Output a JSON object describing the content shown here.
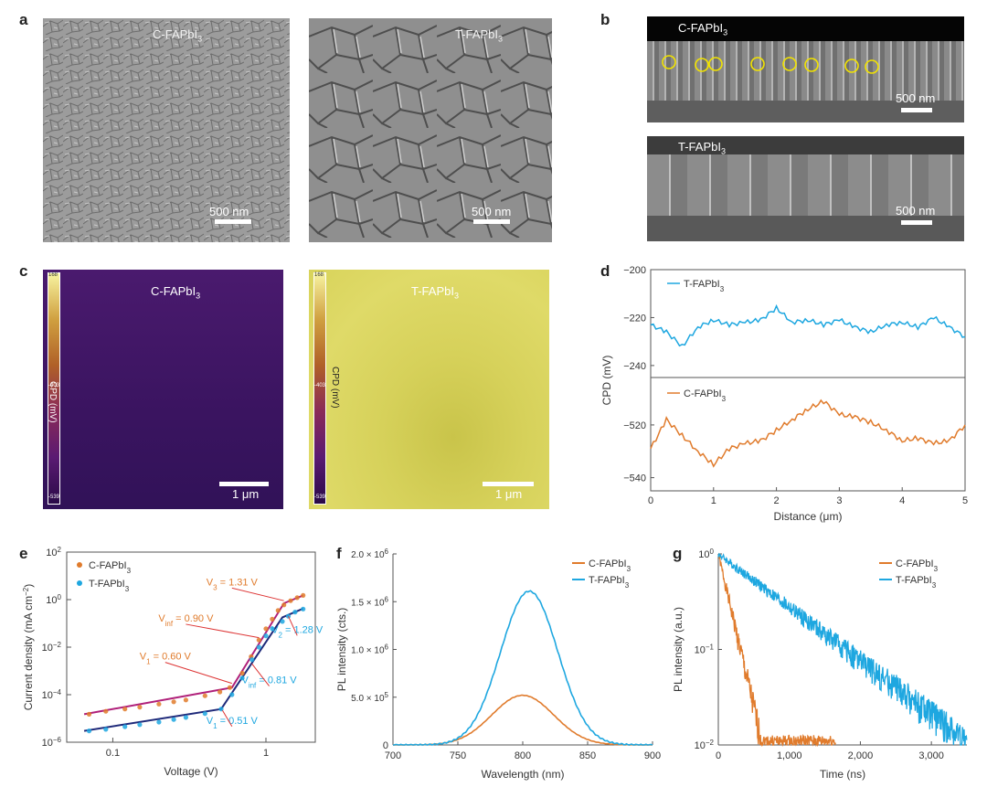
{
  "panels": {
    "a": {
      "letter": "a",
      "left": {
        "label_main": "C-FAPbI",
        "label_sub": "3",
        "scalebar": "500 nm"
      },
      "right": {
        "label_main": "T-FAPbI",
        "label_sub": "3",
        "scalebar": "500 nm"
      }
    },
    "b": {
      "letter": "b",
      "top": {
        "label_main": "C-FAPbI",
        "label_sub": "3",
        "scalebar": "500 nm",
        "circle_count": 8
      },
      "bottom": {
        "label_main": "T-FAPbI",
        "label_sub": "3",
        "scalebar": "500 nm"
      }
    },
    "c": {
      "letter": "c",
      "left": {
        "label_main": "C-FAPbI",
        "label_sub": "3",
        "scalebar": "1 μm",
        "colorbar_axis": "CPD (mV)",
        "cb_top": "168",
        "cb_mid": "-403",
        "cb_bottom": "-539"
      },
      "right": {
        "label_main": "T-FAPbI",
        "label_sub": "3",
        "scalebar": "1 μm",
        "colorbar_axis": "CPD (mV)",
        "cb_top": "168",
        "cb_mid": "-403",
        "cb_bottom": "-539"
      }
    },
    "d": {
      "letter": "d"
    },
    "e": {
      "letter": "e"
    },
    "f": {
      "letter": "f"
    },
    "g": {
      "letter": "g"
    }
  },
  "colors": {
    "orange": "#e07b2c",
    "blue": "#1ea7e0",
    "navy": "#1f2a7a",
    "magenta": "#b0207a",
    "kpfm_c": "#3a1466",
    "kpfm_t": "#d8d35a",
    "circle": "#f2e300"
  },
  "chart_data": [
    {
      "id": "d",
      "type": "line",
      "xlabel": "Distance (μm)",
      "ylabel": "CPD (mV)",
      "xlim": [
        0,
        5
      ],
      "xticks": [
        "0",
        "1",
        "2",
        "3",
        "4",
        "5"
      ],
      "top": {
        "ylim": [
          -245,
          -200
        ],
        "yticks": [
          "-200",
          "-220",
          "-240"
        ],
        "series": {
          "name_main": "T-FAPbI",
          "name_sub": "3",
          "x": [
            0,
            0.25,
            0.5,
            0.75,
            1.0,
            1.25,
            1.5,
            1.75,
            2.0,
            2.25,
            2.5,
            2.75,
            3.0,
            3.25,
            3.5,
            3.75,
            4.0,
            4.25,
            4.5,
            4.75,
            5.0
          ],
          "y": [
            -223,
            -226,
            -232,
            -224,
            -221,
            -223,
            -222,
            -221,
            -216,
            -222,
            -221,
            -223,
            -221,
            -224,
            -226,
            -223,
            -222,
            -224,
            -220,
            -224,
            -228
          ]
        }
      },
      "bottom": {
        "ylim": [
          -545,
          -502
        ],
        "yticks": [
          "-520",
          "-540"
        ],
        "series": {
          "name_main": "C-FAPbI",
          "name_sub": "3",
          "x": [
            0,
            0.25,
            0.5,
            0.75,
            1.0,
            1.25,
            1.5,
            1.75,
            2.0,
            2.25,
            2.5,
            2.75,
            3.0,
            3.25,
            3.5,
            3.75,
            4.0,
            4.25,
            4.5,
            4.75,
            5.0
          ],
          "y": [
            -529,
            -518,
            -524,
            -530,
            -535,
            -529,
            -527,
            -526,
            -522,
            -518,
            -514,
            -511,
            -516,
            -517,
            -519,
            -522,
            -526,
            -525,
            -527,
            -526,
            -520
          ]
        }
      }
    },
    {
      "id": "e",
      "type": "line",
      "xlabel": "Voltage (V)",
      "ylabel": "Current density (mA cm",
      "ylabel_sup": "−2",
      "ylabel_end": ")",
      "xscale": "log",
      "yscale": "log",
      "xlim": [
        0.05,
        2.1
      ],
      "ylim": [
        1e-06,
        100
      ],
      "xticks": [
        {
          "v": 0.1,
          "t": "0.1"
        },
        {
          "v": 1,
          "t": "1"
        }
      ],
      "yticks": [
        {
          "v": 1e-06,
          "b": "10",
          "e": "−6"
        },
        {
          "v": 0.0001,
          "b": "10",
          "e": "−4"
        },
        {
          "v": 0.01,
          "b": "10",
          "e": "−2"
        },
        {
          "v": 1,
          "b": "10",
          "e": "0"
        },
        {
          "v": 100,
          "b": "10",
          "e": "2"
        }
      ],
      "series": [
        {
          "name_main": "C-FAPbI",
          "name_sub": "3",
          "x": [
            0.07,
            0.09,
            0.12,
            0.15,
            0.2,
            0.25,
            0.3,
            0.4,
            0.5,
            0.58,
            0.7,
            0.8,
            0.9,
            1.0,
            1.1,
            1.2,
            1.31,
            1.45,
            1.6,
            1.75
          ],
          "y": [
            1.5e-05,
            2e-05,
            2.5e-05,
            3e-05,
            4e-05,
            5e-05,
            6e-05,
            9e-05,
            0.00013,
            0.0002,
            0.0008,
            0.004,
            0.02,
            0.06,
            0.15,
            0.35,
            0.6,
            0.9,
            1.2,
            1.5
          ]
        },
        {
          "name_main": "T-FAPbI",
          "name_sub": "3",
          "x": [
            0.07,
            0.09,
            0.12,
            0.15,
            0.2,
            0.25,
            0.3,
            0.4,
            0.51,
            0.6,
            0.7,
            0.81,
            0.9,
            1.0,
            1.1,
            1.28,
            1.4,
            1.55,
            1.75
          ],
          "y": [
            3e-06,
            3.5e-06,
            4.5e-06,
            5.5e-06,
            7e-06,
            9e-06,
            1.1e-05,
            1.6e-05,
            2.5e-05,
            0.0001,
            0.0005,
            0.003,
            0.01,
            0.03,
            0.06,
            0.12,
            0.2,
            0.3,
            0.4
          ]
        }
      ],
      "fits": [
        {
          "series": 0,
          "x": [
            0.065,
            0.6,
            1.31,
            1.75
          ],
          "y": [
            1.5e-05,
            0.0002,
            0.7,
            1.5
          ]
        },
        {
          "series": 1,
          "x": [
            0.065,
            0.51,
            1.28,
            1.75
          ],
          "y": [
            3e-06,
            2.5e-05,
            0.18,
            0.42
          ]
        }
      ],
      "annotations": [
        {
          "main": "V",
          "sub": "1",
          "rest": " = 0.60 V",
          "series": 0,
          "tx": 0.22,
          "ty": 0.003,
          "ax": 0.6,
          "ay": 0.0003
        },
        {
          "main": "V",
          "sub": "inf",
          "rest": " = 0.90 V",
          "series": 0,
          "tx": 0.3,
          "ty": 0.12,
          "ax": 0.9,
          "ay": 0.025
        },
        {
          "main": "V",
          "sub": "3",
          "rest": " = 1.31 V",
          "series": 0,
          "tx": 0.6,
          "ty": 4,
          "ax": 1.31,
          "ay": 0.9
        },
        {
          "main": "V",
          "sub": "2",
          "rest": " = 1.28 V",
          "series": 1,
          "tx": 1.6,
          "ty": 0.04,
          "ax": 1.4,
          "ay": 0.2
        },
        {
          "main": "V",
          "sub": "inf",
          "rest": " = 0.81 V",
          "series": 1,
          "tx": 1.05,
          "ty": 0.0003,
          "ax": 0.81,
          "ay": 0.002
        },
        {
          "main": "V",
          "sub": "1",
          "rest": " = 0.51 V",
          "series": 1,
          "tx": 0.6,
          "ty": 6e-06,
          "ax": 0.52,
          "ay": 2.2e-05
        }
      ]
    },
    {
      "id": "f",
      "type": "line",
      "xlabel": "Wavelength (nm)",
      "ylabel": "PL intensity (cts.)",
      "xlim": [
        700,
        900
      ],
      "ylim": [
        0,
        2000000
      ],
      "xticks": [
        "700",
        "750",
        "800",
        "850",
        "900"
      ],
      "yticks": [
        {
          "v": 0,
          "t": "0"
        },
        {
          "v": 500000,
          "m": "5.0 × 10",
          "e": "5"
        },
        {
          "v": 1000000,
          "m": "1.0 × 10",
          "e": "6"
        },
        {
          "v": 1500000,
          "m": "1.5 × 10",
          "e": "6"
        },
        {
          "v": 2000000,
          "m": "2.0 × 10",
          "e": "6"
        }
      ],
      "series": [
        {
          "name_main": "C-FAPbI",
          "name_sub": "3",
          "peak_x": 800,
          "peak_y": 520000,
          "fwhm": 56
        },
        {
          "name_main": "T-FAPbI",
          "name_sub": "3",
          "peak_x": 805,
          "peak_y": 1610000,
          "fwhm": 52
        }
      ]
    },
    {
      "id": "g",
      "type": "line",
      "xlabel": "Time (ns)",
      "ylabel": "PL intensity (a.u.)",
      "yscale": "log",
      "xlim": [
        0,
        3500
      ],
      "ylim": [
        0.01,
        1
      ],
      "xticks": [
        "0",
        "1,000",
        "2,000",
        "3,000"
      ],
      "yticks": [
        {
          "v": 1,
          "b": "10",
          "e": "0"
        },
        {
          "v": 0.1,
          "b": "10",
          "e": "−1"
        },
        {
          "v": 0.01,
          "b": "10",
          "e": "−2"
        }
      ],
      "series": [
        {
          "name_main": "C-FAPbI",
          "name_sub": "3",
          "tau": 135,
          "noise_floor": 0.011,
          "end_x": 1650
        },
        {
          "name_main": "T-FAPbI",
          "name_sub": "3",
          "tau": 780,
          "noise_floor": 0.011,
          "end_x": 3500
        }
      ]
    }
  ]
}
